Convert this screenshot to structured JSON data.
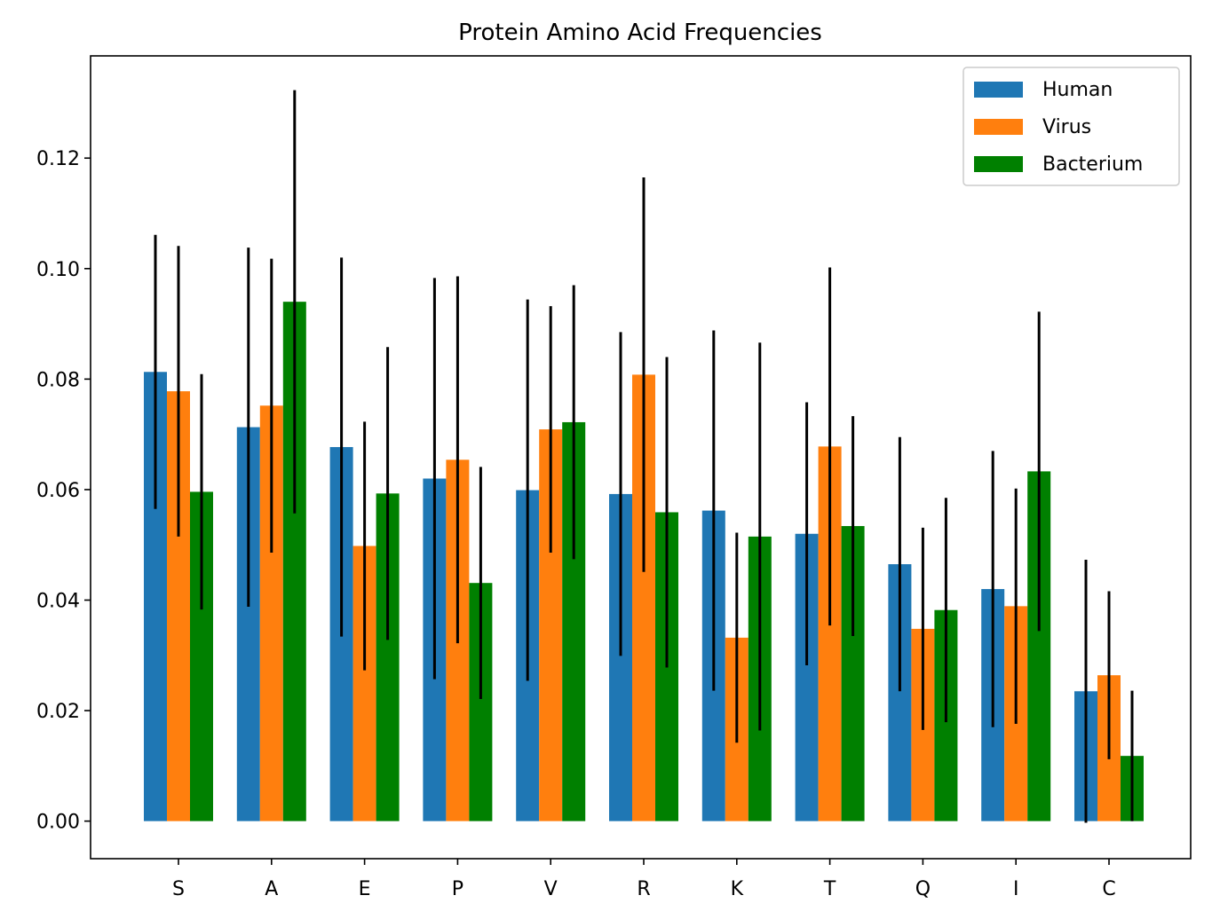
{
  "chart_data": {
    "type": "bar",
    "title": "Protein Amino Acid Frequencies",
    "xlabel": "",
    "ylabel": "",
    "categories": [
      "S",
      "A",
      "E",
      "P",
      "V",
      "R",
      "K",
      "T",
      "Q",
      "I",
      "C"
    ],
    "ylim": [
      -0.0068,
      0.1385
    ],
    "yticks": [
      "0.00",
      "0.02",
      "0.04",
      "0.06",
      "0.08",
      "0.10",
      "0.12"
    ],
    "grid": false,
    "legend_position": "top-right",
    "series": [
      {
        "name": "Human",
        "color": "#1f77b4",
        "values": [
          0.0813,
          0.0713,
          0.0677,
          0.062,
          0.0599,
          0.0592,
          0.0562,
          0.052,
          0.0465,
          0.042,
          0.0235
        ],
        "errors": [
          0.0248,
          0.0325,
          0.0343,
          0.0363,
          0.0345,
          0.0293,
          0.0326,
          0.0238,
          0.023,
          0.025,
          0.0238
        ]
      },
      {
        "name": "Virus",
        "color": "#ff7f0e",
        "values": [
          0.0778,
          0.0752,
          0.0498,
          0.0654,
          0.0709,
          0.0808,
          0.0332,
          0.0678,
          0.0348,
          0.0389,
          0.0264
        ],
        "errors": [
          0.0263,
          0.0266,
          0.0225,
          0.0332,
          0.0223,
          0.0357,
          0.019,
          0.0324,
          0.0183,
          0.0213,
          0.0152
        ]
      },
      {
        "name": "Bacterium",
        "color": "#008000",
        "values": [
          0.0596,
          0.094,
          0.0593,
          0.0431,
          0.0722,
          0.0559,
          0.0515,
          0.0534,
          0.0382,
          0.0633,
          0.0118
        ],
        "errors": [
          0.0213,
          0.0383,
          0.0265,
          0.021,
          0.0248,
          0.0281,
          0.0351,
          0.0199,
          0.0203,
          0.0289,
          0.0118
        ]
      }
    ]
  }
}
